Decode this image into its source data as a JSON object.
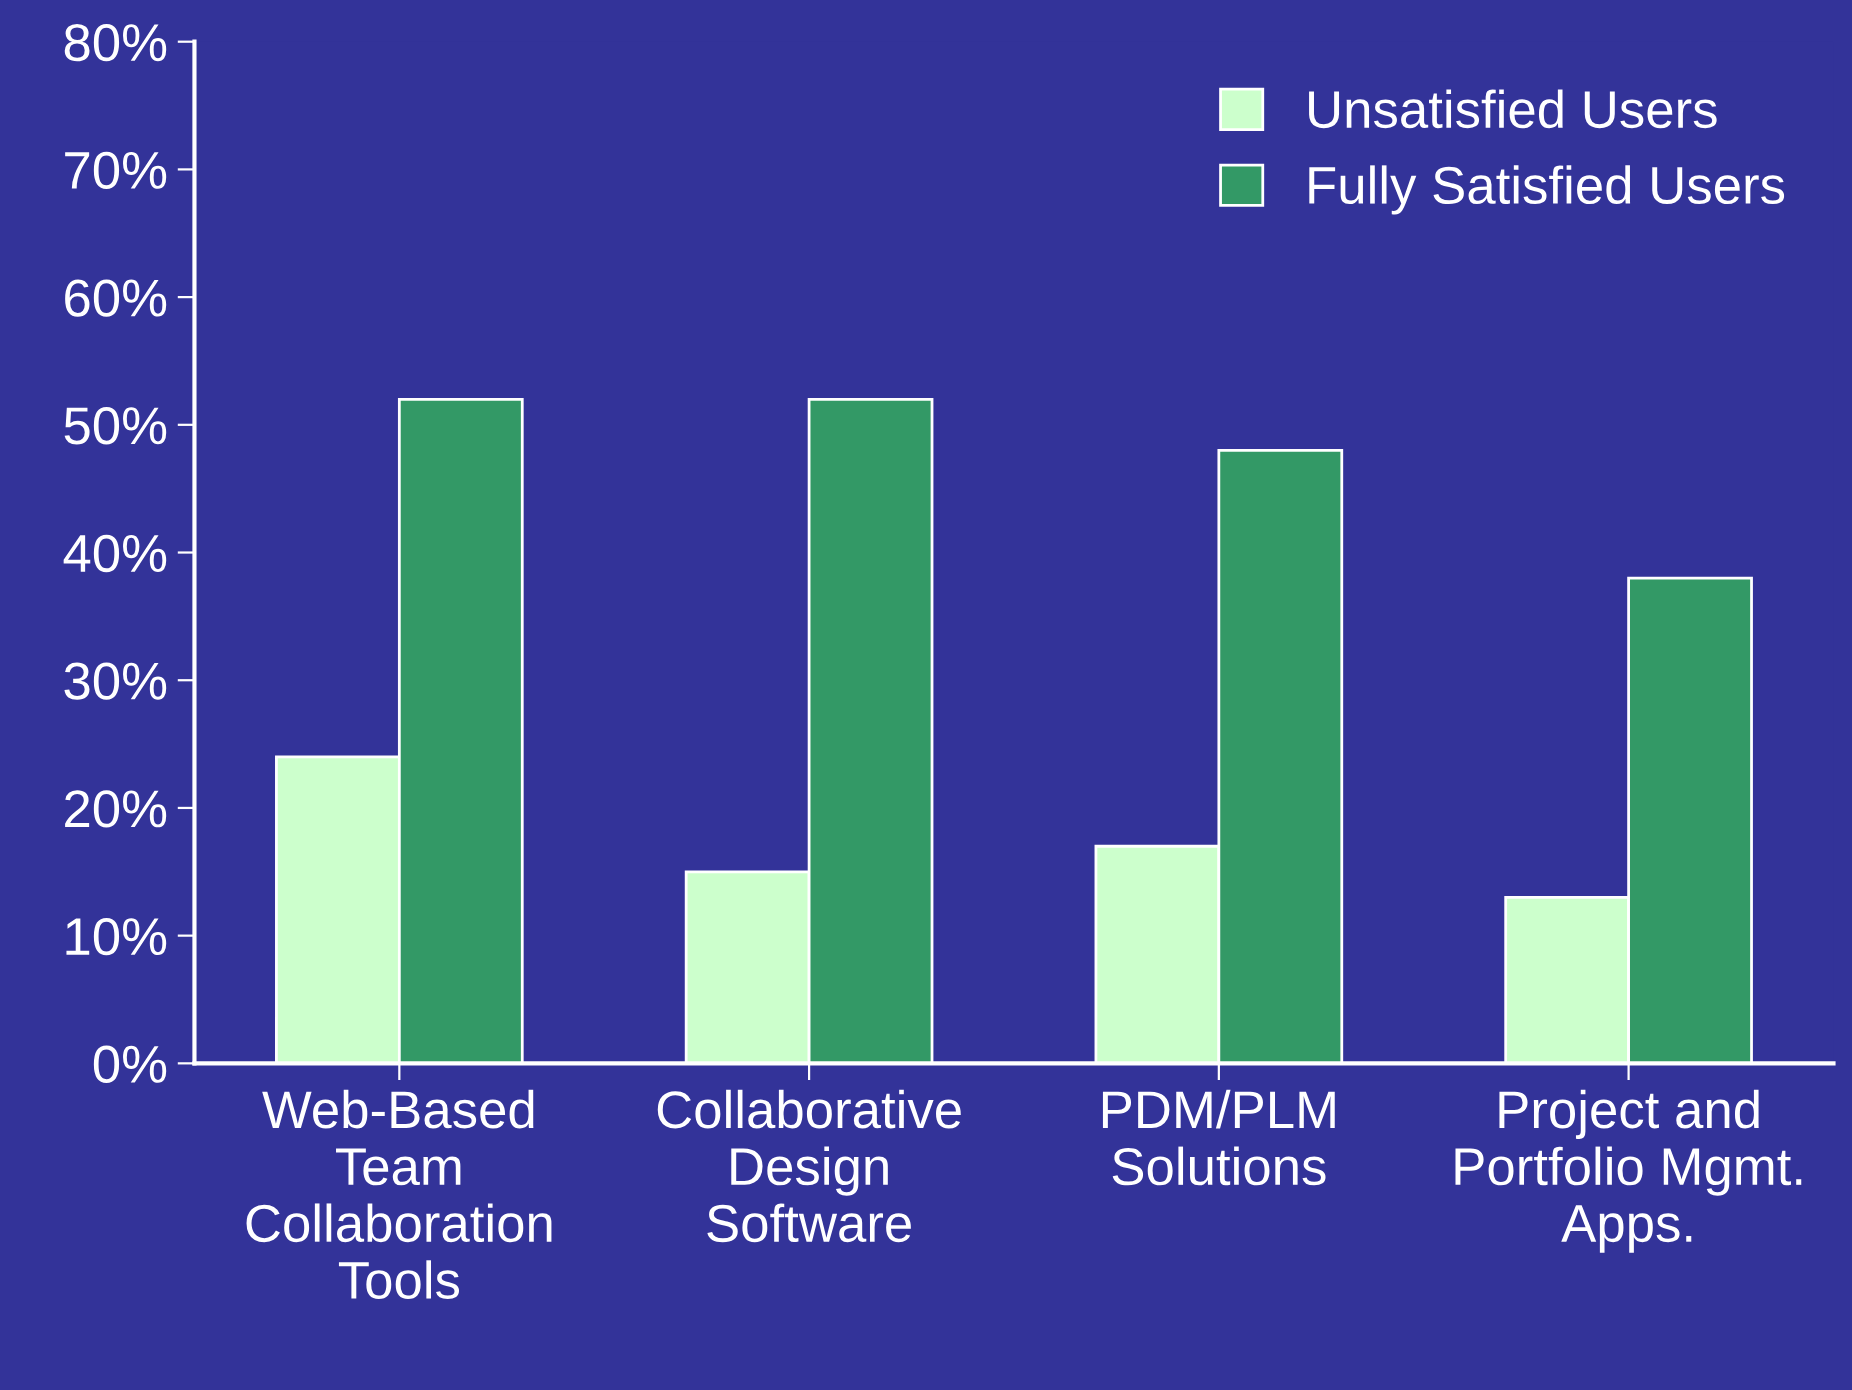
{
  "chart_data": {
    "type": "bar",
    "categories": [
      "Web-Based\nTeam\nCollaboration\nTools",
      "Collaborative\nDesign\nSoftware",
      "PDM/PLM\nSolutions",
      "Project and\nPortfolio Mgmt.\nApps."
    ],
    "series": [
      {
        "name": "Unsatisfied Users",
        "color": "#ccffcc",
        "values": [
          24,
          15,
          17,
          13
        ]
      },
      {
        "name": "Fully Satisfied Users",
        "color": "#339966",
        "values": [
          52,
          52,
          48,
          38
        ]
      }
    ],
    "ylim": [
      0,
      80
    ],
    "yticks": [
      {
        "value": 0,
        "label": "0%"
      },
      {
        "value": 10,
        "label": "10%"
      },
      {
        "value": 20,
        "label": "20%"
      },
      {
        "value": 30,
        "label": "30%"
      },
      {
        "value": 40,
        "label": "40%"
      },
      {
        "value": 50,
        "label": "50%"
      },
      {
        "value": 60,
        "label": "60%"
      },
      {
        "value": 70,
        "label": "70%"
      },
      {
        "value": 80,
        "label": "80%"
      }
    ],
    "grid": false,
    "legend": "top right"
  }
}
